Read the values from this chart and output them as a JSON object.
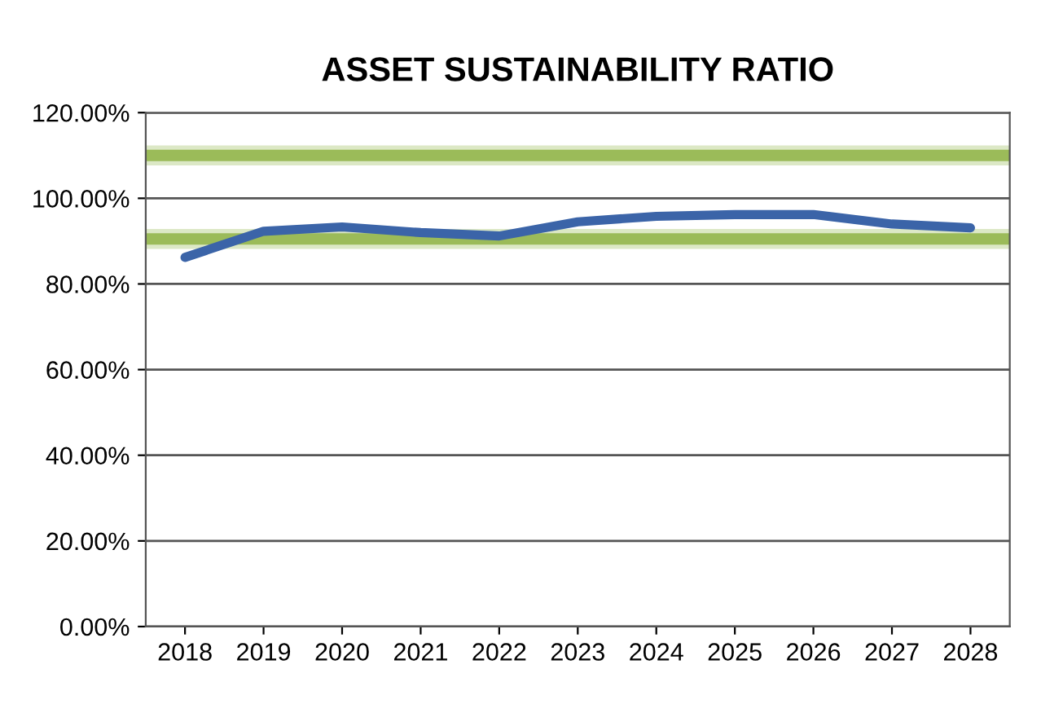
{
  "chart_data": {
    "type": "line",
    "title": "ASSET SUSTAINABILITY RATIO",
    "categories": [
      "2018",
      "2019",
      "2020",
      "2021",
      "2022",
      "2023",
      "2024",
      "2025",
      "2026",
      "2027",
      "2028"
    ],
    "series": [
      {
        "color": "#3b64a8",
        "values": [
          86.2,
          92.3,
          93.3,
          92.0,
          91.2,
          94.5,
          95.8,
          96.2,
          96.2,
          94.0,
          93.1
        ]
      }
    ],
    "ylim": [
      0,
      120
    ],
    "yticks": [
      {
        "value": 0,
        "label": "0.00%"
      },
      {
        "value": 20,
        "label": "20.00%"
      },
      {
        "value": 40,
        "label": "40.00%"
      },
      {
        "value": 60,
        "label": "60.00%"
      },
      {
        "value": 80,
        "label": "80.00%"
      },
      {
        "value": 100,
        "label": "100.00%"
      },
      {
        "value": 120,
        "label": "120.00%"
      }
    ],
    "bands": [
      {
        "axis": "y",
        "from": 108,
        "to": 112,
        "color": "#c5d9a0"
      },
      {
        "axis": "y",
        "from": 88.5,
        "to": 92.5,
        "color": "#c5d9a0"
      }
    ],
    "ref_lines": [
      {
        "axis": "y",
        "value": 110,
        "color": "#9bbb59"
      },
      {
        "axis": "y",
        "value": 90.5,
        "color": "#9bbb59"
      }
    ],
    "grid": "y",
    "legend": false,
    "marker": "none",
    "line_style": "solid"
  }
}
